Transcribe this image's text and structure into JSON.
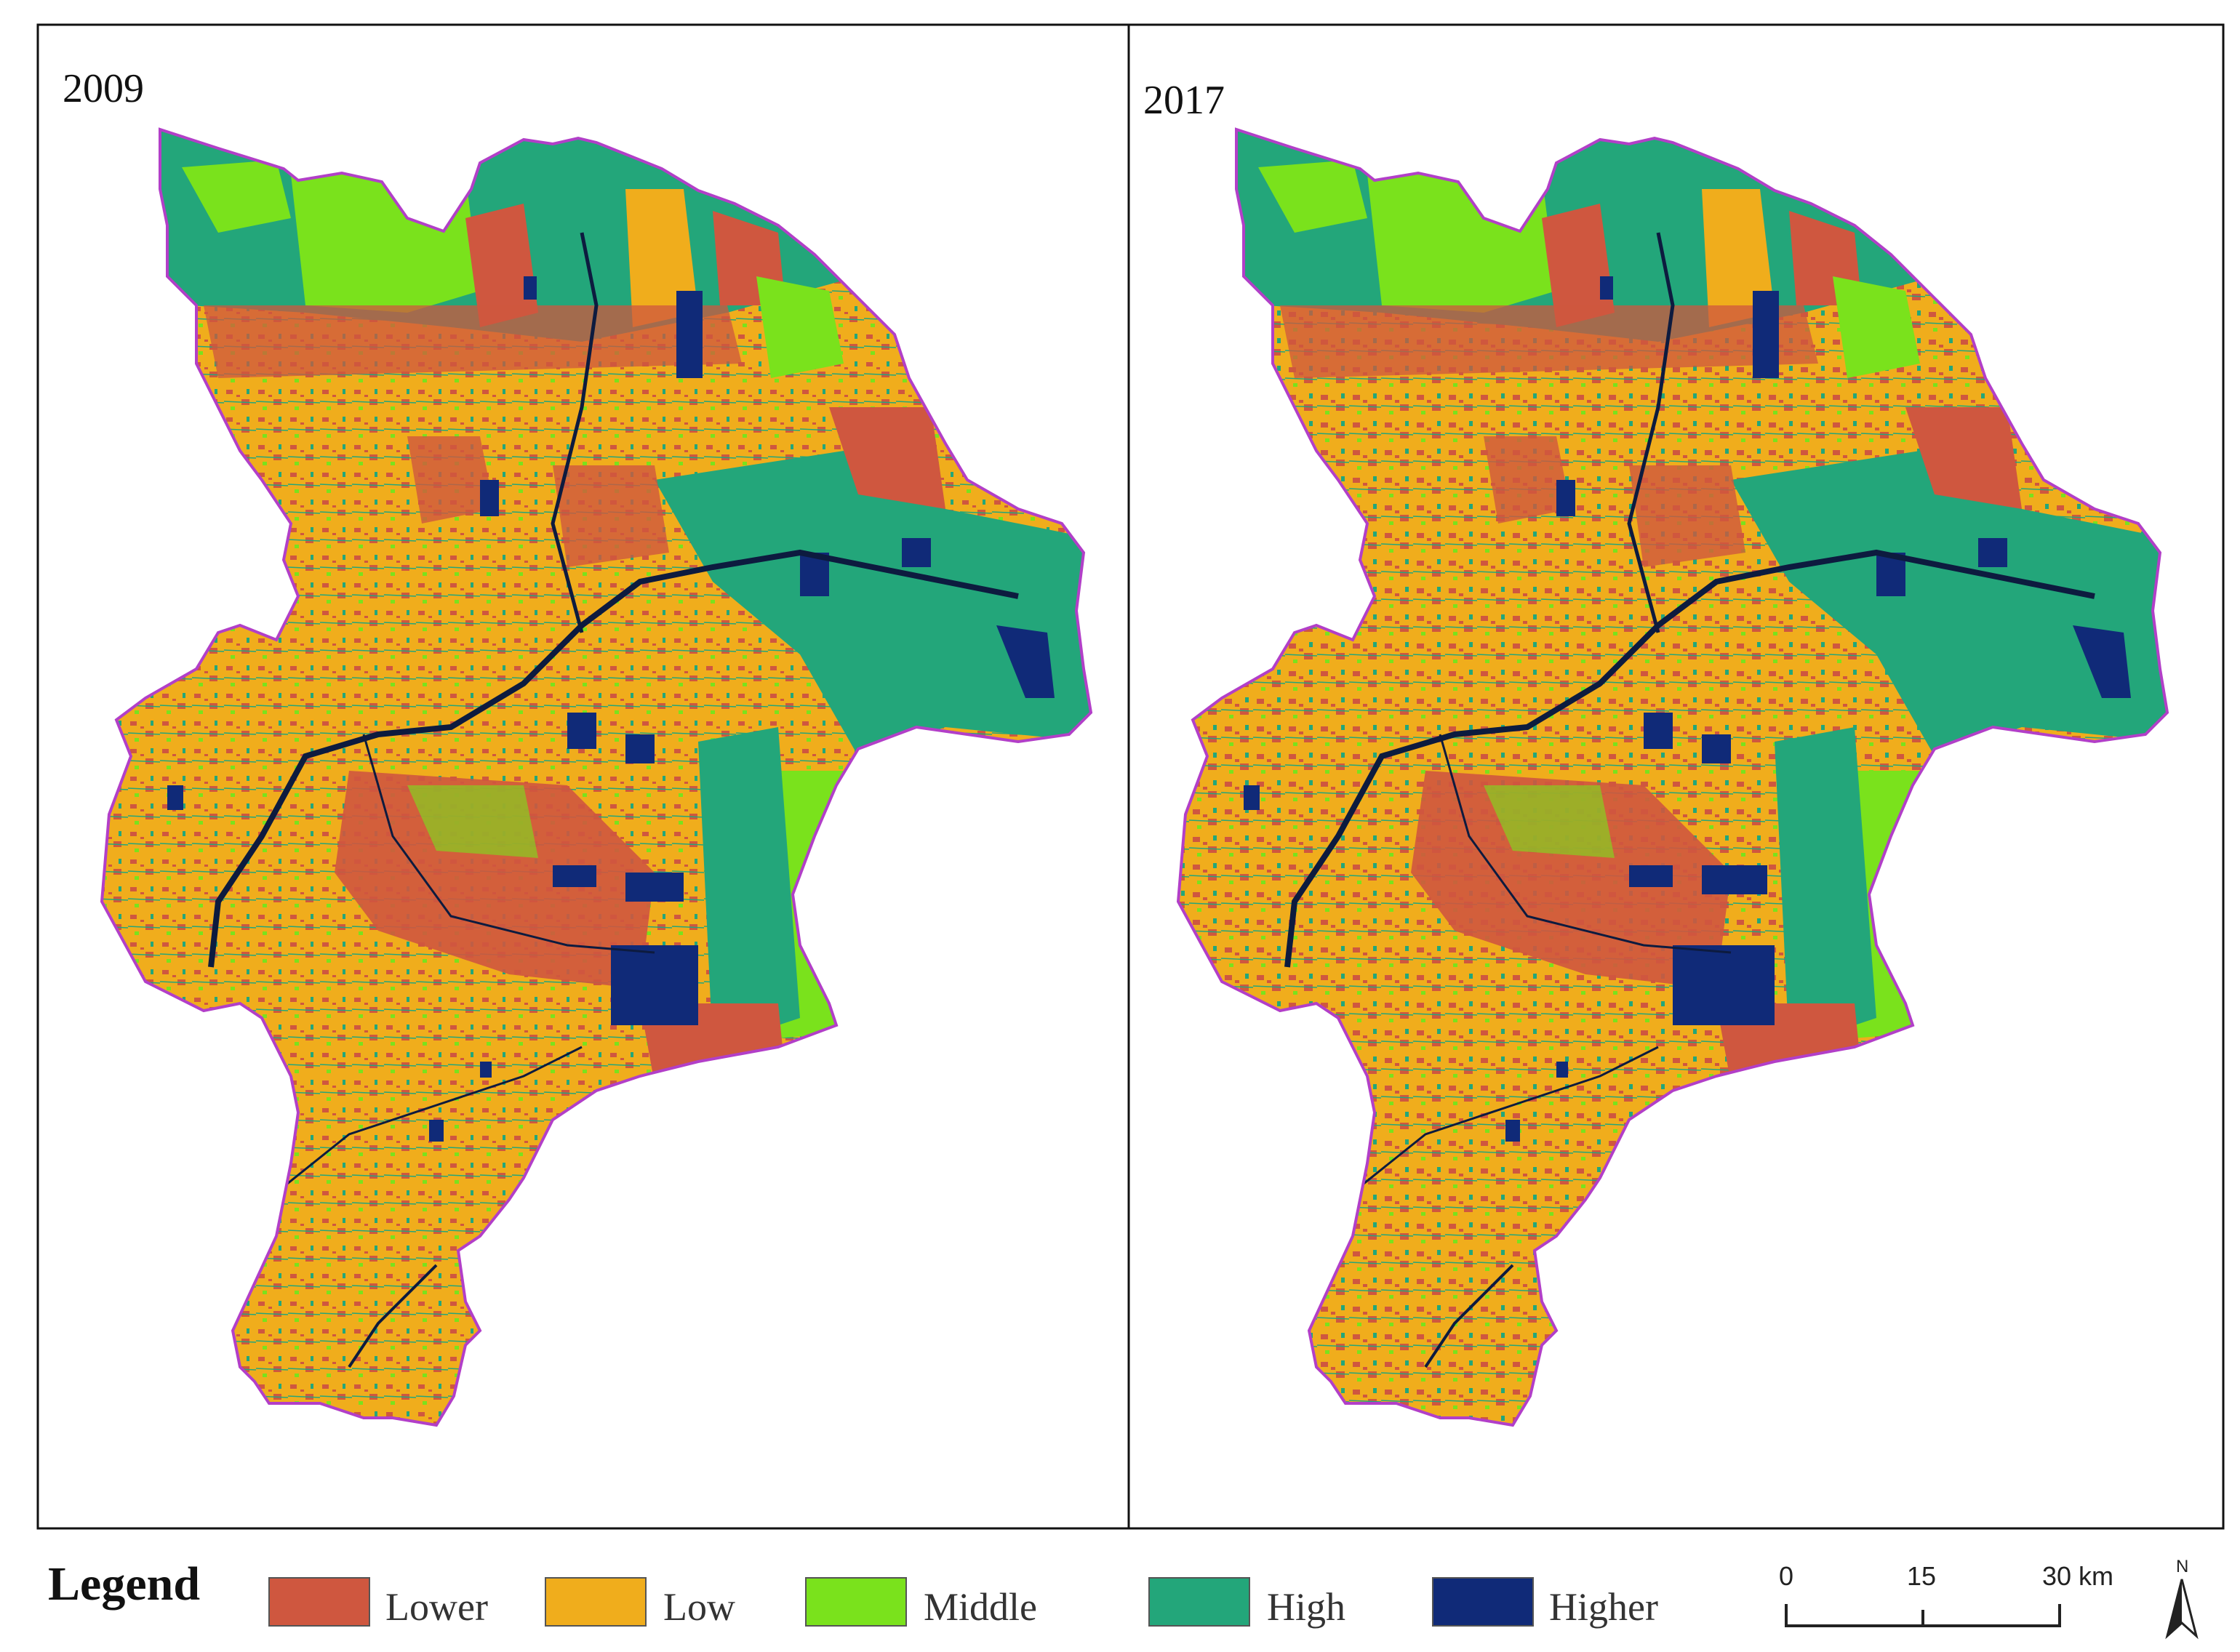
{
  "panels": [
    {
      "label": "2009"
    },
    {
      "label": "2017"
    }
  ],
  "legend": {
    "title": "Legend",
    "items": [
      {
        "label": "Lower",
        "color": "#cf573f"
      },
      {
        "label": "Low",
        "color": "#f0ad1c"
      },
      {
        "label": "Middle",
        "color": "#7ae21c"
      },
      {
        "label": "High",
        "color": "#23a67a"
      },
      {
        "label": "Higher",
        "color": "#102a78"
      }
    ]
  },
  "scale_bar": {
    "ticks": [
      "0",
      "15",
      "30 km"
    ]
  },
  "north_arrow": {
    "label": "N",
    "icon": "north-arrow-icon"
  },
  "colors": {
    "boundary": "#b23fc8",
    "river": "#0d1b3f",
    "frame": "#111111"
  }
}
